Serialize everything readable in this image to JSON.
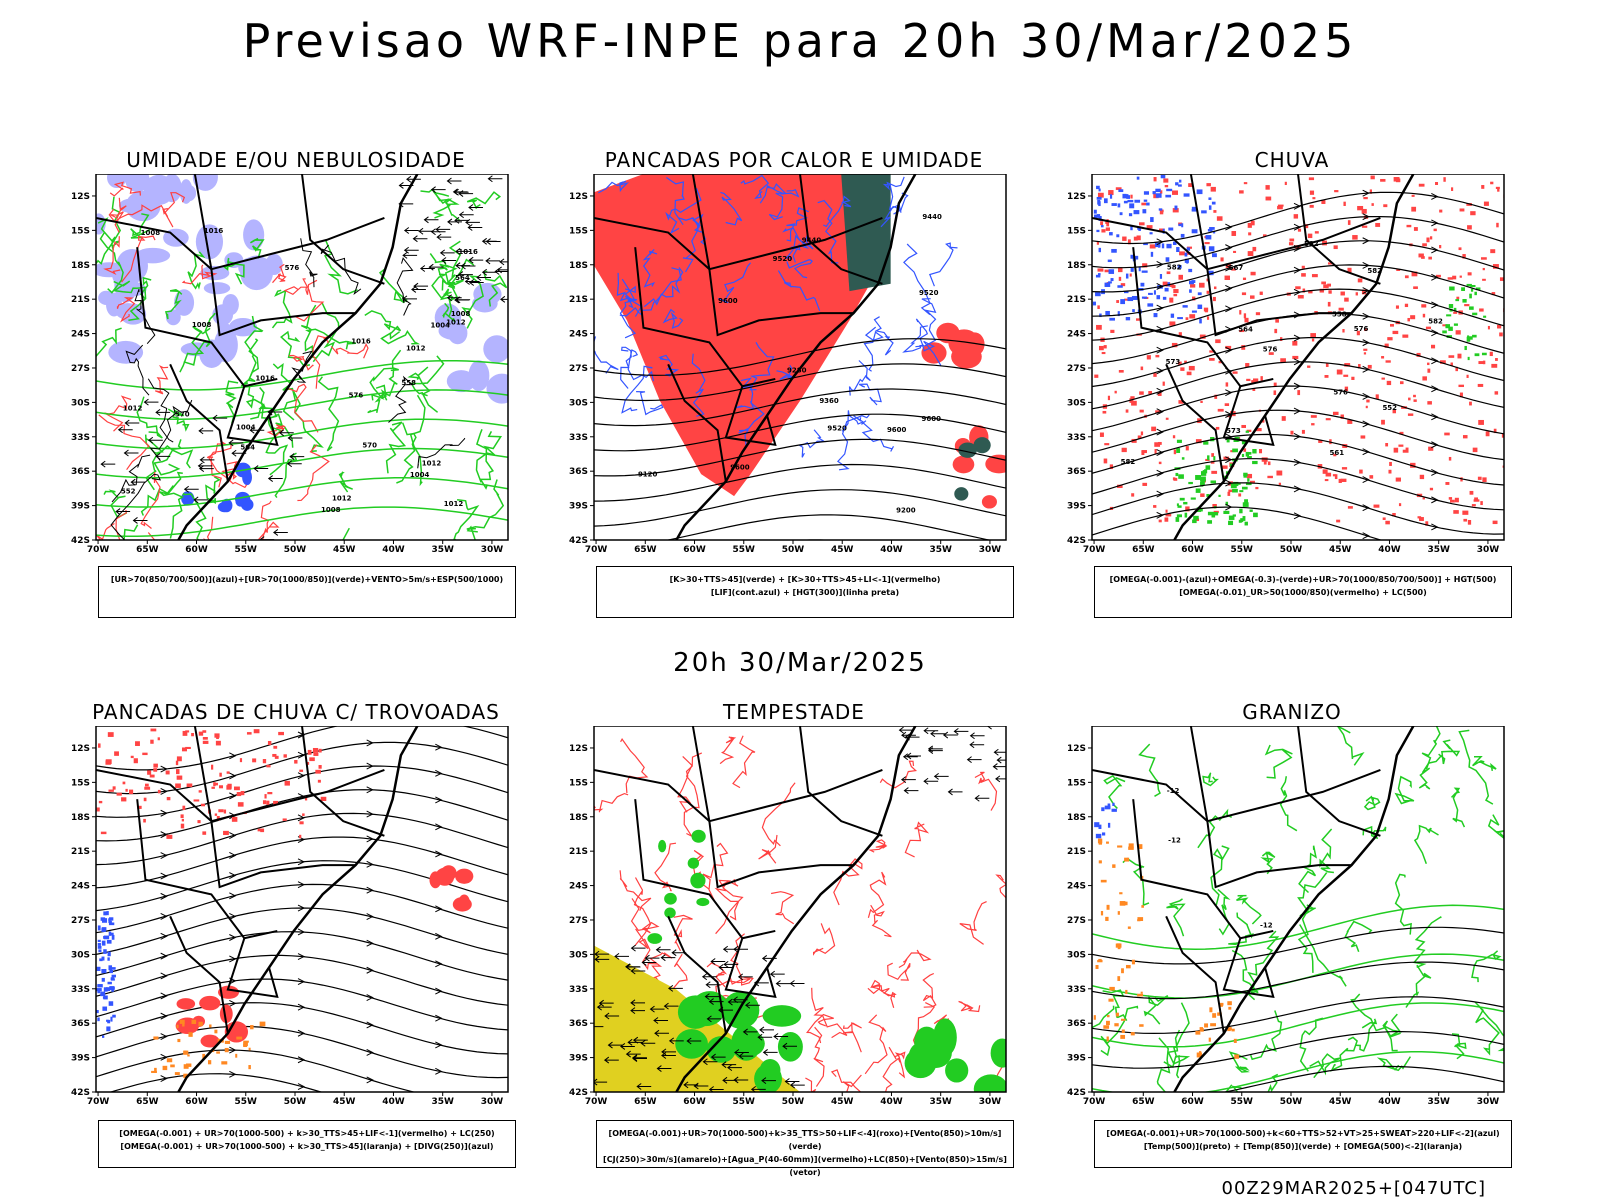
{
  "title": "Previsao WRF-INPE  para 20h 30/Mar/2025",
  "middle_title": "20h 30/Mar/2025",
  "footer": "00Z29MAR2025+[047UTC]",
  "colors": {
    "red": "#ff4444",
    "blue": "#3355ff",
    "green": "#22cc22",
    "lavender": "#b4b4ff",
    "dark_teal": "#2f5a52",
    "orange": "#ff8822",
    "yellow": "#e0d020",
    "contour_black": "#000000",
    "contour_red": "#ff4040"
  },
  "chart_data": [
    {
      "type": "map",
      "title": "UMIDADE E/OU NEBULOSIDADE",
      "lat_ticks": [
        "12S",
        "15S",
        "18S",
        "21S",
        "24S",
        "27S",
        "30S",
        "33S",
        "36S",
        "39S",
        "42S"
      ],
      "lon_ticks": [
        "70W",
        "65W",
        "60W",
        "55W",
        "50W",
        "45W",
        "40W",
        "35W",
        "30W"
      ],
      "contour_labels": [
        "1008",
        "1008",
        "1004",
        "1008",
        "1012",
        "1012",
        "1016",
        "1016",
        "1016",
        "1012",
        "1004",
        "1004",
        "1012",
        "1008",
        "1016",
        "1012",
        "1012",
        "576",
        "564",
        "558",
        "552",
        "564",
        "576",
        "570",
        "570"
      ],
      "legend": [
        "[UR>70(850/700/500)](azul)+[UR>70(1000/850)](verde)+VENTO>5m/s+ESP(500/1000)"
      ]
    },
    {
      "type": "map",
      "title": "PANCADAS POR CALOR E UMIDADE",
      "lat_ticks": [
        "12S",
        "15S",
        "18S",
        "21S",
        "24S",
        "27S",
        "30S",
        "33S",
        "36S",
        "39S",
        "42S"
      ],
      "lon_ticks": [
        "70W",
        "65W",
        "60W",
        "55W",
        "50W",
        "45W",
        "40W",
        "35W",
        "30W"
      ],
      "contour_labels": [
        "9600",
        "9600",
        "9600",
        "9600",
        "9520",
        "9520",
        "9520",
        "9440",
        "9440",
        "9360",
        "9280",
        "9200",
        "9120"
      ],
      "legend": [
        "[K>30+TTS>45](verde) + [K>30+TTS>45+LI<-1](vermelho)",
        "[LIF](cont.azul) + [HGT(300)](linha preta)"
      ]
    },
    {
      "type": "map",
      "title": "CHUVA",
      "lat_ticks": [
        "12S",
        "15S",
        "18S",
        "21S",
        "24S",
        "27S",
        "30S",
        "33S",
        "36S",
        "39S",
        "42S"
      ],
      "lon_ticks": [
        "70W",
        "65W",
        "60W",
        "55W",
        "50W",
        "45W",
        "40W",
        "35W",
        "30W"
      ],
      "contour_labels": [
        "582",
        "582",
        "582",
        "582",
        "576",
        "576",
        "576",
        "573",
        "573",
        "567",
        "564",
        "561",
        "558",
        "552",
        "582"
      ],
      "legend": [
        "[OMEGA(-0.001)-(azul)+OMEGA(-0.3)-(verde)+UR>70(1000/850/700/500)] + HGT(500)",
        "[OMEGA(-0.01)_UR>50(1000/850)(vermelho) + LC(500)"
      ]
    },
    {
      "type": "map",
      "title": "PANCADAS DE CHUVA C/ TROVOADAS",
      "lat_ticks": [
        "12S",
        "15S",
        "18S",
        "21S",
        "24S",
        "27S",
        "30S",
        "33S",
        "36S",
        "39S",
        "42S"
      ],
      "lon_ticks": [
        "70W",
        "65W",
        "60W",
        "55W",
        "50W",
        "45W",
        "40W",
        "35W",
        "30W"
      ],
      "contour_labels": [],
      "legend": [
        "[OMEGA(-0.001) + UR>70(1000-500) + k>30_TTS>45+LIF<-1](vermelho) + LC(250)",
        "[OMEGA(-0.001) + UR>70(1000-500) + k>30_TTS>45](laranja) + [DIVG(250)](azul)"
      ]
    },
    {
      "type": "map",
      "title": "TEMPESTADE",
      "lat_ticks": [
        "12S",
        "15S",
        "18S",
        "21S",
        "24S",
        "27S",
        "30S",
        "33S",
        "36S",
        "39S",
        "42S"
      ],
      "lon_ticks": [
        "70W",
        "65W",
        "60W",
        "55W",
        "50W",
        "45W",
        "40W",
        "35W",
        "30W"
      ],
      "contour_labels": [],
      "legend": [
        "[OMEGA(-0.001)+UR>70(1000-500)+k>35_TTS>50+LIF<-4](roxo)+[Vento(850)>10m/s](verde)",
        "[CJ(250)>30m/s](amarelo)+[Agua_P(40-60mm)](vermelho)+LC(850)+[Vento(850)>15m/s](vetor)"
      ]
    },
    {
      "type": "map",
      "title": "GRANIZO",
      "lat_ticks": [
        "12S",
        "15S",
        "18S",
        "21S",
        "24S",
        "27S",
        "30S",
        "33S",
        "36S",
        "39S",
        "42S"
      ],
      "lon_ticks": [
        "70W",
        "65W",
        "60W",
        "55W",
        "50W",
        "45W",
        "40W",
        "35W",
        "30W"
      ],
      "contour_labels": [
        "-12",
        "-12",
        "-12"
      ],
      "legend": [
        "[OMEGA(-0.001)+UR>70(1000-500)+k<60+TTS>52+VT>25+SWEAT>220+LIF<-2](azul)",
        "[Temp(500)](preto) + [Temp(850)](verde) + [OMEGA(500)<-2](laranja)"
      ]
    }
  ]
}
